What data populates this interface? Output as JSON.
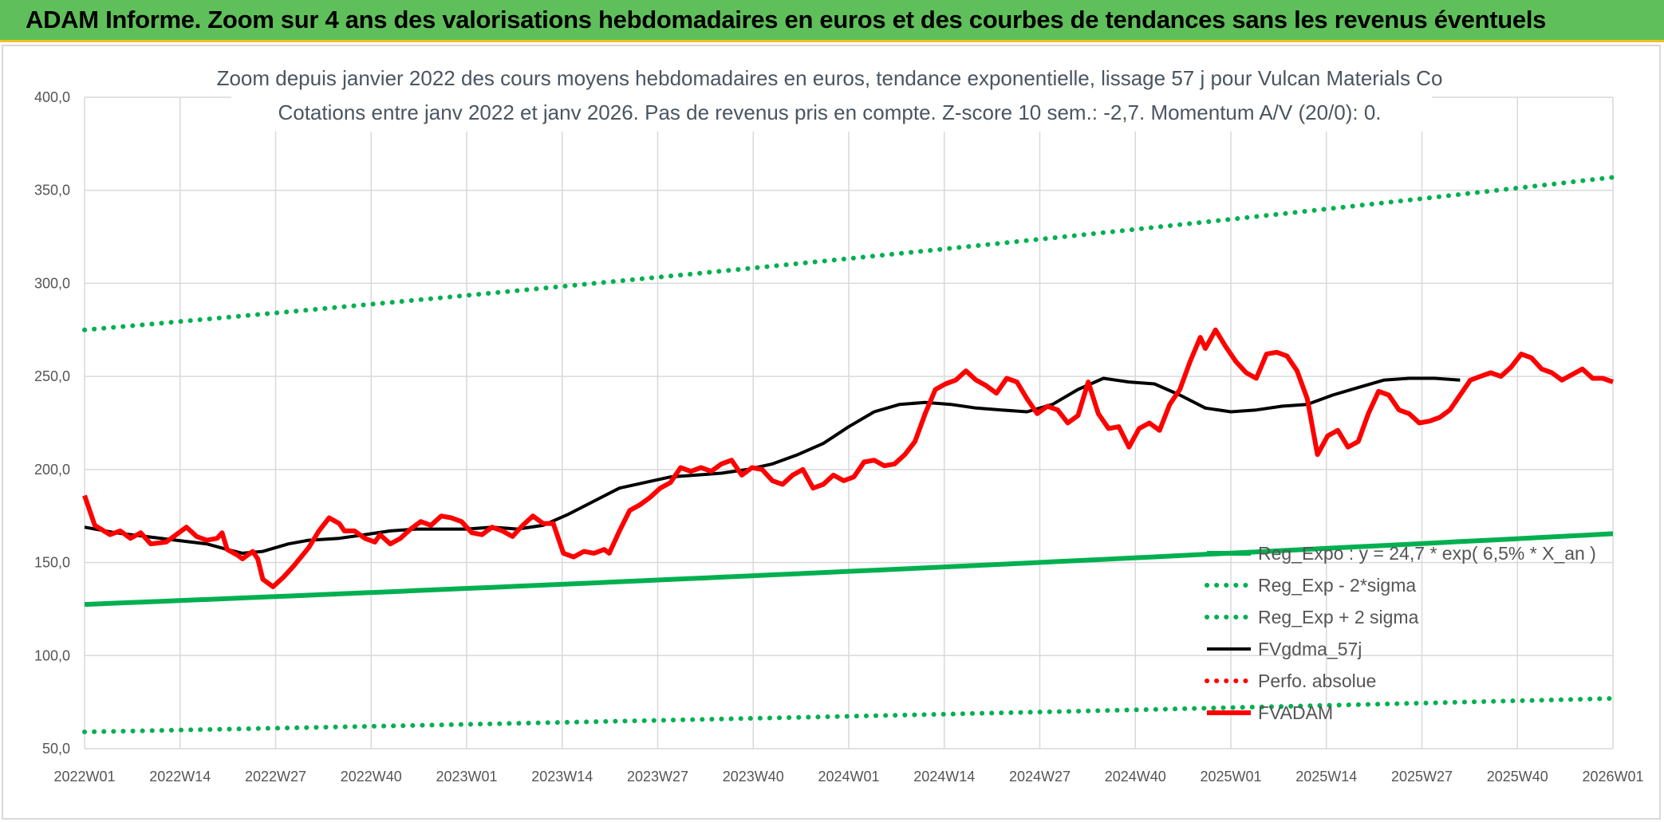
{
  "banner": {
    "title": "ADAM Informe. Zoom sur 4 ans des valorisations hebdomadaires en euros et des courbes de tendances sans les revenus éventuels"
  },
  "chart_data": {
    "type": "line",
    "title_line1": "Zoom depuis janvier 2022 des cours moyens hebdomadaires en euros, tendance exponentielle, lissage 57 j pour Vulcan Materials Co",
    "title_line2": "Cotations entre janv 2022 et janv 2026. Pas de revenus pris en compte. Z-score 10 sem.: -2,7. Momentum A/V (20/0): 0.",
    "x_tick_labels": [
      "2022W01",
      "2022W14",
      "2022W27",
      "2022W40",
      "2023W01",
      "2023W14",
      "2023W27",
      "2023W40",
      "2024W01",
      "2024W14",
      "2024W27",
      "2024W40",
      "2025W01",
      "2025W14",
      "2025W27",
      "2025W40",
      "2026W01"
    ],
    "x_range_weeks": [
      0,
      209
    ],
    "y_tick_labels": [
      "400,0",
      "350,0",
      "300,0",
      "250,0",
      "200,0",
      "150,0",
      "100,0",
      "50,0"
    ],
    "ylim": [
      50,
      400
    ],
    "grid": true,
    "legend_position": "bottom-right",
    "series": [
      {
        "name": "Reg_Expo : y = 24,7 * exp( 6,5% *  X_an )",
        "color": "#00b050",
        "style": "solid",
        "start": 127.5,
        "end": 165.5
      },
      {
        "name": "Reg_Exp - 2*sigma",
        "color": "#00b050",
        "style": "dotted",
        "start": 59,
        "end": 77
      },
      {
        "name": "Reg_Exp + 2 sigma",
        "color": "#00b050",
        "style": "dotted",
        "start": 275,
        "end": 357
      },
      {
        "name": "FVgdma_57j",
        "color": "#000000",
        "style": "solid",
        "points": [
          [
            0,
            169
          ],
          [
            6,
            166
          ],
          [
            12,
            164
          ],
          [
            18,
            162
          ],
          [
            24,
            160
          ],
          [
            28,
            157
          ],
          [
            31,
            155
          ],
          [
            35,
            156
          ],
          [
            40,
            160
          ],
          [
            44,
            162
          ],
          [
            50,
            163
          ],
          [
            55,
            165
          ],
          [
            60,
            167
          ],
          [
            65,
            168
          ],
          [
            70,
            168
          ],
          [
            75,
            168
          ],
          [
            80,
            169
          ],
          [
            85,
            168
          ],
          [
            90,
            170
          ],
          [
            95,
            176
          ],
          [
            100,
            183
          ],
          [
            105,
            190
          ],
          [
            110,
            193
          ],
          [
            115,
            196
          ],
          [
            120,
            197
          ],
          [
            125,
            198
          ],
          [
            130,
            200
          ],
          [
            135,
            203
          ],
          [
            140,
            208
          ],
          [
            145,
            214
          ],
          [
            150,
            223
          ],
          [
            155,
            231
          ],
          [
            160,
            235
          ],
          [
            165,
            236
          ],
          [
            170,
            235
          ],
          [
            175,
            233
          ],
          [
            180,
            232
          ],
          [
            185,
            231
          ],
          [
            190,
            235
          ],
          [
            195,
            243
          ],
          [
            200,
            249
          ],
          [
            205,
            247
          ],
          [
            210,
            246
          ],
          [
            215,
            240
          ],
          [
            220,
            233
          ],
          [
            225,
            231
          ],
          [
            230,
            232
          ],
          [
            235,
            234
          ],
          [
            240,
            235
          ],
          [
            245,
            240
          ],
          [
            250,
            244
          ],
          [
            255,
            248
          ],
          [
            260,
            249
          ],
          [
            265,
            249
          ],
          [
            270,
            248
          ]
        ]
      },
      {
        "name": "Perfo. absolue",
        "color": "#ff0000",
        "style": "dotted",
        "points": []
      },
      {
        "name": "FVADAM",
        "color": "#ff0000",
        "style": "solid",
        "points": [
          [
            0,
            186
          ],
          [
            2,
            170
          ],
          [
            5,
            165
          ],
          [
            7,
            167
          ],
          [
            9,
            163
          ],
          [
            11,
            166
          ],
          [
            13,
            160
          ],
          [
            16,
            161
          ],
          [
            18,
            165
          ],
          [
            20,
            169
          ],
          [
            22,
            164
          ],
          [
            24,
            162
          ],
          [
            26,
            163
          ],
          [
            27,
            166
          ],
          [
            28,
            157
          ],
          [
            30,
            154
          ],
          [
            31,
            152
          ],
          [
            33,
            156
          ],
          [
            34,
            152
          ],
          [
            35,
            141
          ],
          [
            37,
            137
          ],
          [
            39,
            142
          ],
          [
            41,
            148
          ],
          [
            44,
            158
          ],
          [
            46,
            167
          ],
          [
            48,
            174
          ],
          [
            50,
            171
          ],
          [
            51,
            167
          ],
          [
            53,
            167
          ],
          [
            55,
            163
          ],
          [
            57,
            161
          ],
          [
            58,
            165
          ],
          [
            60,
            160
          ],
          [
            62,
            163
          ],
          [
            64,
            168
          ],
          [
            66,
            172
          ],
          [
            68,
            170
          ],
          [
            70,
            175
          ],
          [
            72,
            174
          ],
          [
            74,
            172
          ],
          [
            76,
            166
          ],
          [
            78,
            165
          ],
          [
            80,
            169
          ],
          [
            82,
            167
          ],
          [
            84,
            164
          ],
          [
            86,
            170
          ],
          [
            88,
            175
          ],
          [
            90,
            171
          ],
          [
            92,
            171
          ],
          [
            94,
            155
          ],
          [
            96,
            153
          ],
          [
            98,
            156
          ],
          [
            100,
            155
          ],
          [
            102,
            157
          ],
          [
            103,
            155
          ],
          [
            105,
            167
          ],
          [
            107,
            178
          ],
          [
            109,
            181
          ],
          [
            111,
            185
          ],
          [
            113,
            190
          ],
          [
            115,
            193
          ],
          [
            117,
            201
          ],
          [
            119,
            199
          ],
          [
            121,
            201
          ],
          [
            123,
            199
          ],
          [
            125,
            203
          ],
          [
            127,
            205
          ],
          [
            129,
            197
          ],
          [
            131,
            201
          ],
          [
            133,
            200
          ],
          [
            135,
            194
          ],
          [
            137,
            192
          ],
          [
            139,
            197
          ],
          [
            141,
            200
          ],
          [
            143,
            190
          ],
          [
            145,
            192
          ],
          [
            147,
            197
          ],
          [
            149,
            194
          ],
          [
            151,
            196
          ],
          [
            153,
            204
          ],
          [
            155,
            205
          ],
          [
            157,
            202
          ],
          [
            159,
            203
          ],
          [
            161,
            208
          ],
          [
            163,
            215
          ],
          [
            165,
            230
          ],
          [
            167,
            243
          ],
          [
            169,
            246
          ],
          [
            171,
            248
          ],
          [
            173,
            253
          ],
          [
            175,
            248
          ],
          [
            177,
            245
          ],
          [
            179,
            241
          ],
          [
            181,
            249
          ],
          [
            183,
            247
          ],
          [
            185,
            238
          ],
          [
            187,
            230
          ],
          [
            189,
            234
          ],
          [
            191,
            232
          ],
          [
            193,
            225
          ],
          [
            195,
            229
          ],
          [
            197,
            247
          ],
          [
            199,
            230
          ],
          [
            201,
            222
          ],
          [
            203,
            223
          ],
          [
            205,
            212
          ],
          [
            207,
            222
          ],
          [
            209,
            225
          ],
          [
            211,
            221
          ],
          [
            213,
            235
          ],
          [
            215,
            243
          ],
          [
            217,
            258
          ],
          [
            219,
            271
          ],
          [
            220,
            265
          ],
          [
            222,
            275
          ],
          [
            224,
            266
          ],
          [
            226,
            258
          ],
          [
            228,
            252
          ],
          [
            230,
            249
          ],
          [
            232,
            262
          ],
          [
            234,
            263
          ],
          [
            236,
            261
          ],
          [
            238,
            253
          ],
          [
            240,
            238
          ],
          [
            242,
            208
          ],
          [
            244,
            218
          ],
          [
            246,
            221
          ],
          [
            248,
            212
          ],
          [
            250,
            215
          ],
          [
            252,
            230
          ],
          [
            254,
            242
          ],
          [
            256,
            240
          ],
          [
            258,
            232
          ],
          [
            260,
            230
          ],
          [
            262,
            225
          ],
          [
            264,
            226
          ],
          [
            266,
            228
          ],
          [
            268,
            232
          ],
          [
            270,
            240
          ],
          [
            272,
            248
          ],
          [
            274,
            250
          ],
          [
            276,
            252
          ],
          [
            278,
            250
          ],
          [
            280,
            255
          ],
          [
            282,
            262
          ],
          [
            284,
            260
          ],
          [
            286,
            254
          ],
          [
            288,
            252
          ],
          [
            290,
            248
          ],
          [
            292,
            251
          ],
          [
            294,
            254
          ],
          [
            296,
            249
          ],
          [
            298,
            249
          ],
          [
            300,
            247
          ]
        ]
      }
    ]
  }
}
